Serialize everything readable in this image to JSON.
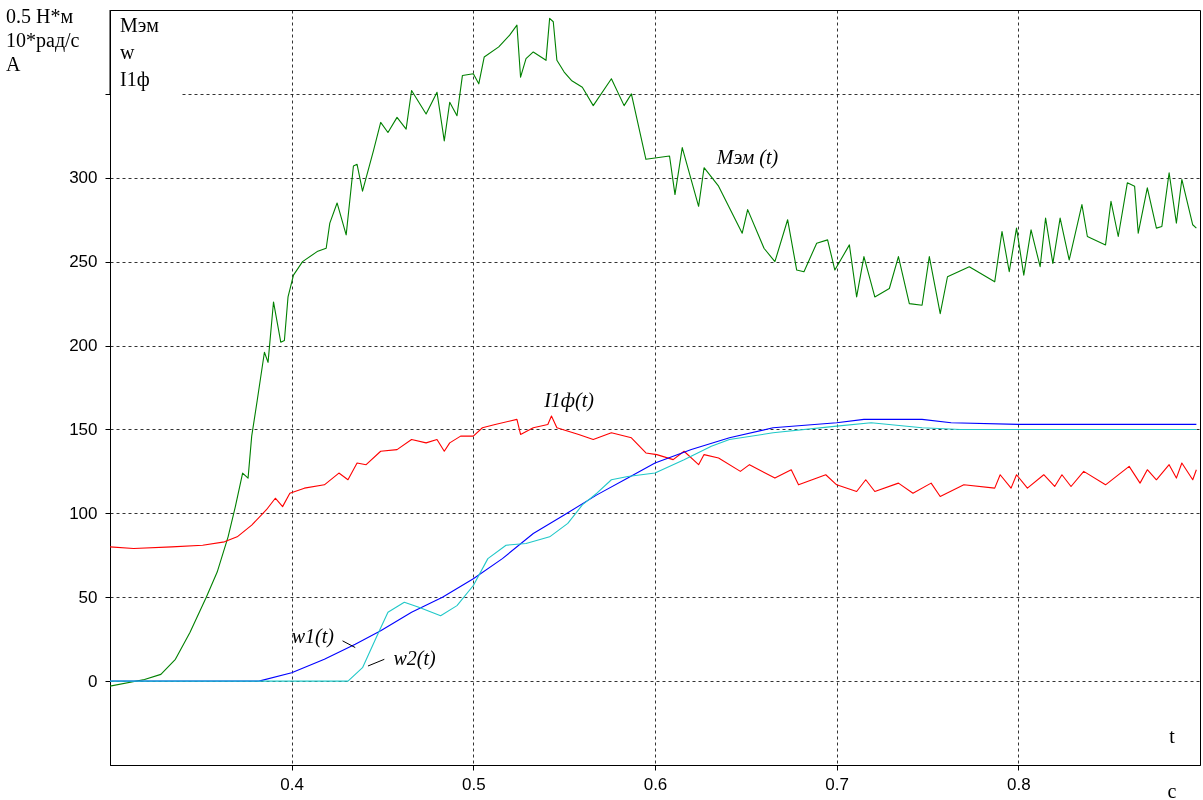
{
  "chart_data": {
    "type": "line",
    "ylabel": "0.5 Н*м\n10*рад/с\nА",
    "xlabel": "с",
    "annotations": [
      "Мэм",
      "w",
      "I1ф",
      "t"
    ],
    "xlim": [
      0.3,
      0.9
    ],
    "xticks": [
      0.4,
      0.5,
      0.6,
      0.7,
      0.8
    ],
    "ylim": [
      -50,
      400
    ],
    "yticks": [
      0,
      50,
      100,
      150,
      200,
      250,
      300,
      {
        "value": 350,
        "label": null
      }
    ],
    "grid": true,
    "line_style": "solid",
    "marker": "none",
    "series": [
      {
        "name": "Мэм (t)",
        "color": "#008000",
        "x": [
          0.3,
          0.319,
          0.328,
          0.336,
          0.344,
          0.353,
          0.359,
          0.365,
          0.369,
          0.373,
          0.376,
          0.378,
          0.381,
          0.385,
          0.387,
          0.39,
          0.394,
          0.396,
          0.398,
          0.401,
          0.406,
          0.414,
          0.419,
          0.421,
          0.425,
          0.43,
          0.434,
          0.436,
          0.439,
          0.445,
          0.449,
          0.453,
          0.458,
          0.463,
          0.466,
          0.474,
          0.48,
          0.484,
          0.487,
          0.491,
          0.494,
          0.5,
          0.503,
          0.506,
          0.514,
          0.52,
          0.524,
          0.526,
          0.529,
          0.533,
          0.54,
          0.542,
          0.544,
          0.546,
          0.55,
          0.554,
          0.56,
          0.566,
          0.576,
          0.583,
          0.587,
          0.595,
          0.608,
          0.611,
          0.615,
          0.624,
          0.627,
          0.635,
          0.648,
          0.651,
          0.66,
          0.666,
          0.673,
          0.678,
          0.682,
          0.689,
          0.695,
          0.699,
          0.707,
          0.711,
          0.715,
          0.721,
          0.729,
          0.734,
          0.74,
          0.747,
          0.751,
          0.757,
          0.761,
          0.773,
          0.787,
          0.791,
          0.795,
          0.799,
          0.803,
          0.807,
          0.812,
          0.815,
          0.819,
          0.823,
          0.828,
          0.835,
          0.838,
          0.848,
          0.851,
          0.855,
          0.86,
          0.864,
          0.866,
          0.871,
          0.876,
          0.879,
          0.883,
          0.887,
          0.89,
          0.896,
          0.898
        ],
        "values": [
          -3,
          1,
          4,
          13,
          29,
          50,
          65,
          86,
          104,
          124,
          121,
          146,
          167,
          196,
          190,
          226,
          202,
          203,
          229,
          242,
          250,
          256,
          258,
          273,
          285,
          266,
          307,
          308,
          292,
          316,
          333,
          327,
          336,
          329,
          352,
          338,
          351,
          322,
          345,
          337,
          361,
          362,
          356,
          372,
          378,
          385,
          391,
          360,
          371,
          375,
          370,
          395,
          393,
          370,
          363,
          358,
          354,
          343,
          359,
          343,
          350,
          311,
          313,
          290,
          318,
          283,
          306,
          295,
          267,
          281,
          258,
          250,
          275,
          245,
          244,
          261,
          263,
          245,
          260,
          229,
          253,
          229,
          234,
          253,
          225,
          224,
          253,
          219,
          241,
          247,
          238,
          268,
          244,
          270,
          242,
          269,
          247,
          276,
          249,
          276,
          251,
          284,
          265,
          260,
          286,
          265,
          297,
          295,
          267,
          294,
          270,
          271,
          303,
          273,
          299,
          272,
          270
        ]
      },
      {
        "name": "I1ф(t)",
        "color": "#ff0000",
        "x": [
          0.3,
          0.313,
          0.334,
          0.351,
          0.363,
          0.37,
          0.378,
          0.386,
          0.391,
          0.395,
          0.399,
          0.407,
          0.418,
          0.426,
          0.431,
          0.436,
          0.441,
          0.449,
          0.458,
          0.466,
          0.474,
          0.48,
          0.484,
          0.487,
          0.493,
          0.5,
          0.505,
          0.512,
          0.524,
          0.526,
          0.533,
          0.541,
          0.543,
          0.546,
          0.558,
          0.566,
          0.576,
          0.587,
          0.595,
          0.601,
          0.61,
          0.616,
          0.624,
          0.627,
          0.635,
          0.647,
          0.652,
          0.666,
          0.675,
          0.679,
          0.694,
          0.7,
          0.711,
          0.716,
          0.721,
          0.734,
          0.742,
          0.752,
          0.757,
          0.77,
          0.787,
          0.79,
          0.796,
          0.799,
          0.805,
          0.814,
          0.82,
          0.824,
          0.829,
          0.836,
          0.848,
          0.861,
          0.867,
          0.871,
          0.876,
          0.883,
          0.887,
          0.89,
          0.896,
          0.898
        ],
        "values": [
          80,
          79,
          80,
          81,
          83,
          86,
          93,
          102,
          109,
          104,
          112,
          115,
          117,
          124,
          120,
          130,
          129,
          137,
          138,
          144,
          142,
          144,
          137,
          142,
          146,
          146,
          151,
          153,
          156,
          147,
          151,
          153,
          158,
          151,
          147,
          144,
          148,
          145,
          136,
          135,
          132,
          137,
          129,
          135,
          133,
          125,
          129,
          121,
          126,
          117,
          123,
          117,
          113,
          120,
          113,
          118,
          112,
          118,
          110,
          117,
          115,
          123,
          115,
          123,
          115,
          123,
          116,
          123,
          116,
          125,
          117,
          128,
          118,
          126,
          120,
          129,
          121,
          130,
          120,
          126
        ]
      },
      {
        "name": "w1(t)",
        "color": "#0000ff",
        "x": [
          0.3,
          0.382,
          0.4,
          0.418,
          0.435,
          0.449,
          0.466,
          0.483,
          0.5,
          0.516,
          0.533,
          0.55,
          0.568,
          0.585,
          0.6,
          0.62,
          0.641,
          0.665,
          0.7,
          0.715,
          0.747,
          0.763,
          0.8,
          0.898
        ],
        "values": [
          0,
          0,
          5,
          13,
          22,
          30,
          41,
          50,
          61,
          73,
          88,
          99,
          111,
          121,
          130,
          138,
          145,
          151,
          154,
          156,
          156,
          154,
          153,
          153
        ]
      },
      {
        "name": "w2(t)",
        "color": "#20c8c8",
        "x": [
          0.3,
          0.431,
          0.439,
          0.447,
          0.453,
          0.462,
          0.47,
          0.482,
          0.491,
          0.5,
          0.508,
          0.518,
          0.529,
          0.542,
          0.552,
          0.56,
          0.568,
          0.576,
          0.585,
          0.6,
          0.616,
          0.631,
          0.641,
          0.665,
          0.7,
          0.719,
          0.747,
          0.768,
          0.898
        ],
        "values": [
          0,
          0,
          8,
          27,
          41,
          47,
          44,
          39,
          45,
          57,
          73,
          81,
          82,
          86,
          94,
          105,
          112,
          120,
          122,
          124,
          132,
          140,
          144,
          148,
          152,
          154,
          151,
          150,
          150
        ]
      }
    ]
  }
}
